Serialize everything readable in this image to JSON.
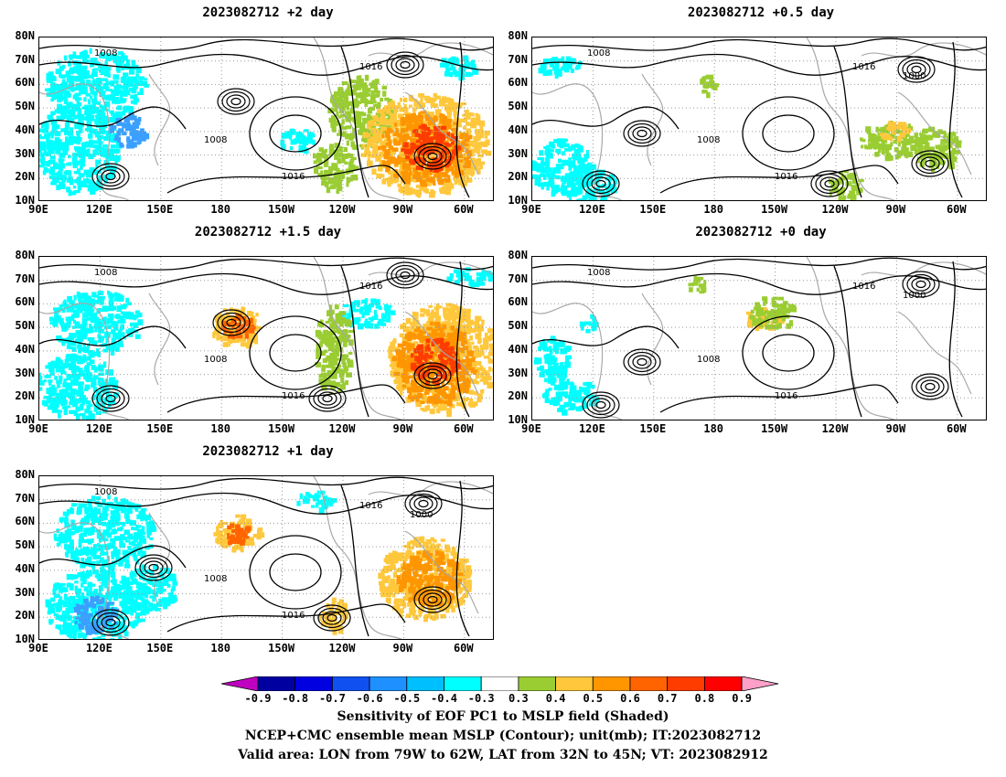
{
  "panels": [
    {
      "title": "2023082712 +2 day"
    },
    {
      "title": "2023082712 +0.5 day"
    },
    {
      "title": "2023082712 +1.5 day"
    },
    {
      "title": "2023082712 +0 day"
    },
    {
      "title": "2023082712 +1 day"
    }
  ],
  "lat_labels": [
    "80N",
    "70N",
    "60N",
    "50N",
    "40N",
    "30N",
    "20N",
    "10N"
  ],
  "lon_labels": [
    "90E",
    "120E",
    "150E",
    "180",
    "150W",
    "120W",
    "90W",
    "60W"
  ],
  "contour_label_1016": "1016",
  "contour_label_1008": "1008",
  "contour_label_1000": "1000",
  "colorbar": {
    "labels": [
      "-0.9",
      "-0.8",
      "-0.7",
      "-0.6",
      "-0.5",
      "-0.4",
      "-0.3",
      "0.3",
      "0.4",
      "0.5",
      "0.6",
      "0.7",
      "0.8",
      "0.9"
    ],
    "colors": [
      "#c000c0",
      "#0000a0",
      "#0000e0",
      "#1050f0",
      "#1e90ff",
      "#00bfff",
      "#00ffff",
      "#ffffff",
      "#9acd32",
      "#ffc83c",
      "#ff9600",
      "#ff6400",
      "#ff3c00",
      "#ff0000",
      "#ffa0c8"
    ]
  },
  "caption": {
    "line1": "Sensitivity of EOF PC1 to MSLP field (Shaded)",
    "line2": "NCEP+CMC ensemble mean MSLP (Contour); unit(mb); IT:2023082712",
    "line3": "Valid area: LON from 79W to 62W, LAT from 32N to 45N; VT: 2023082912"
  }
}
